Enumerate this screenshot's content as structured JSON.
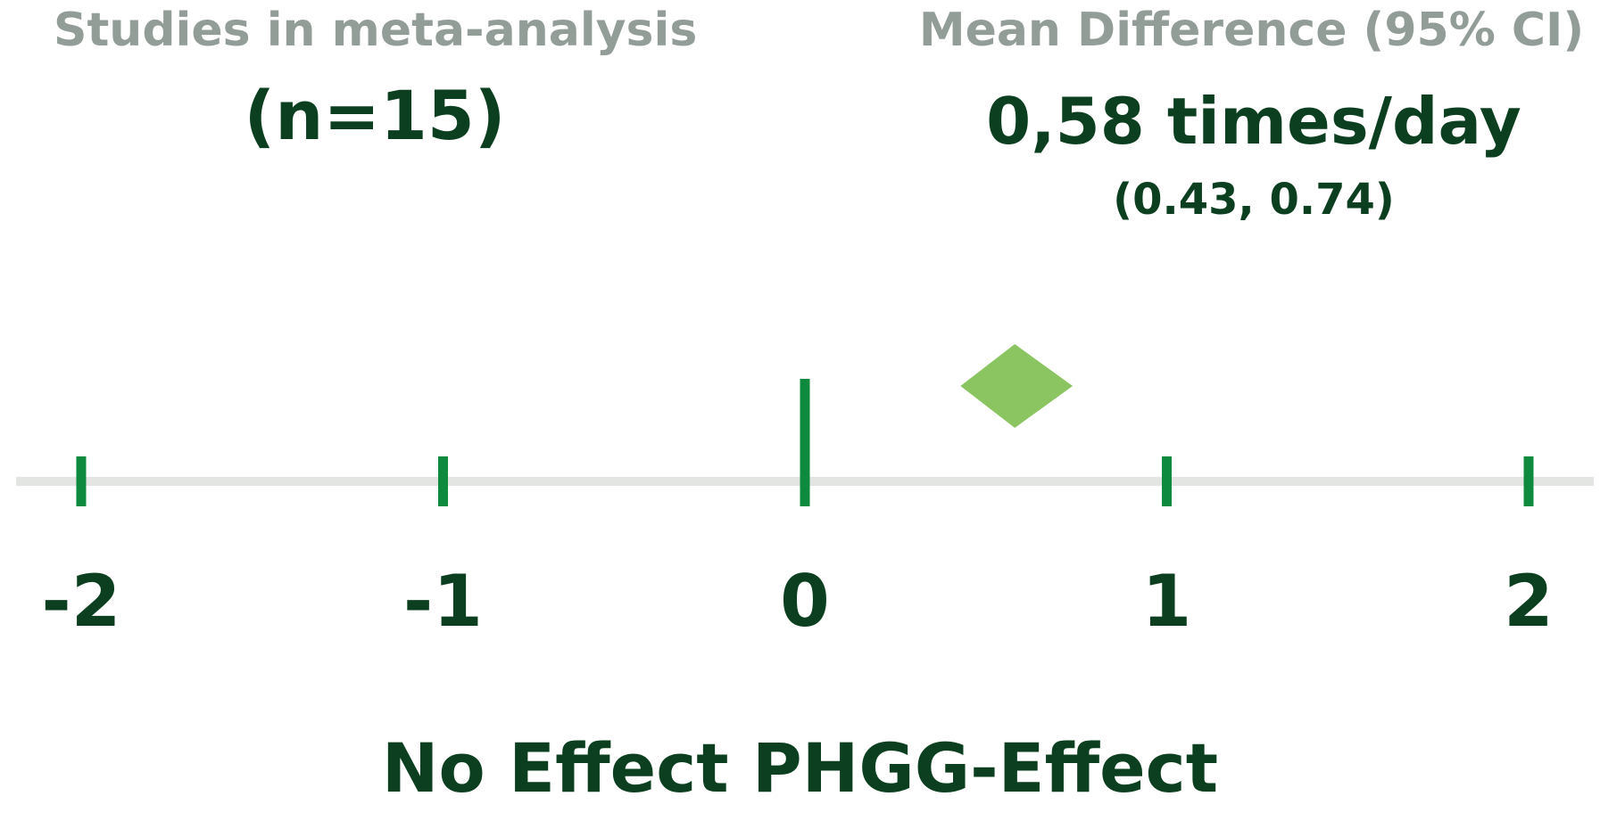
{
  "header": {
    "studies_label": "Studies in meta-analysis",
    "studies_count": "(n=15)",
    "effect_label": "Mean Difference (95% CI)",
    "effect_value": "0,58 times/day",
    "effect_ci": "(0.43, 0.74)"
  },
  "chart_data": {
    "type": "forest",
    "title": "",
    "xlabel": "",
    "ylabel": "",
    "x_ticks": [
      -2,
      -1,
      0,
      1,
      2
    ],
    "x_tick_labels": [
      "-2",
      "-1",
      "0",
      "1",
      "2"
    ],
    "xlim": [
      -2.18,
      2.18
    ],
    "null_line": 0,
    "pooled_estimate": {
      "mean_difference": 0.58,
      "ci_lower": 0.43,
      "ci_upper": 0.74,
      "unit": "times/day",
      "n_studies": 15
    },
    "grid": false,
    "legend": "none"
  },
  "footer": {
    "caption": "No Effect PHGG-Effect"
  },
  "colors": {
    "axis_line": "#e3e5e3",
    "tick": "#0e8a3e",
    "diamond": "#8bc561",
    "text_dark": "#0b3f1f",
    "text_gray": "#939d98"
  }
}
